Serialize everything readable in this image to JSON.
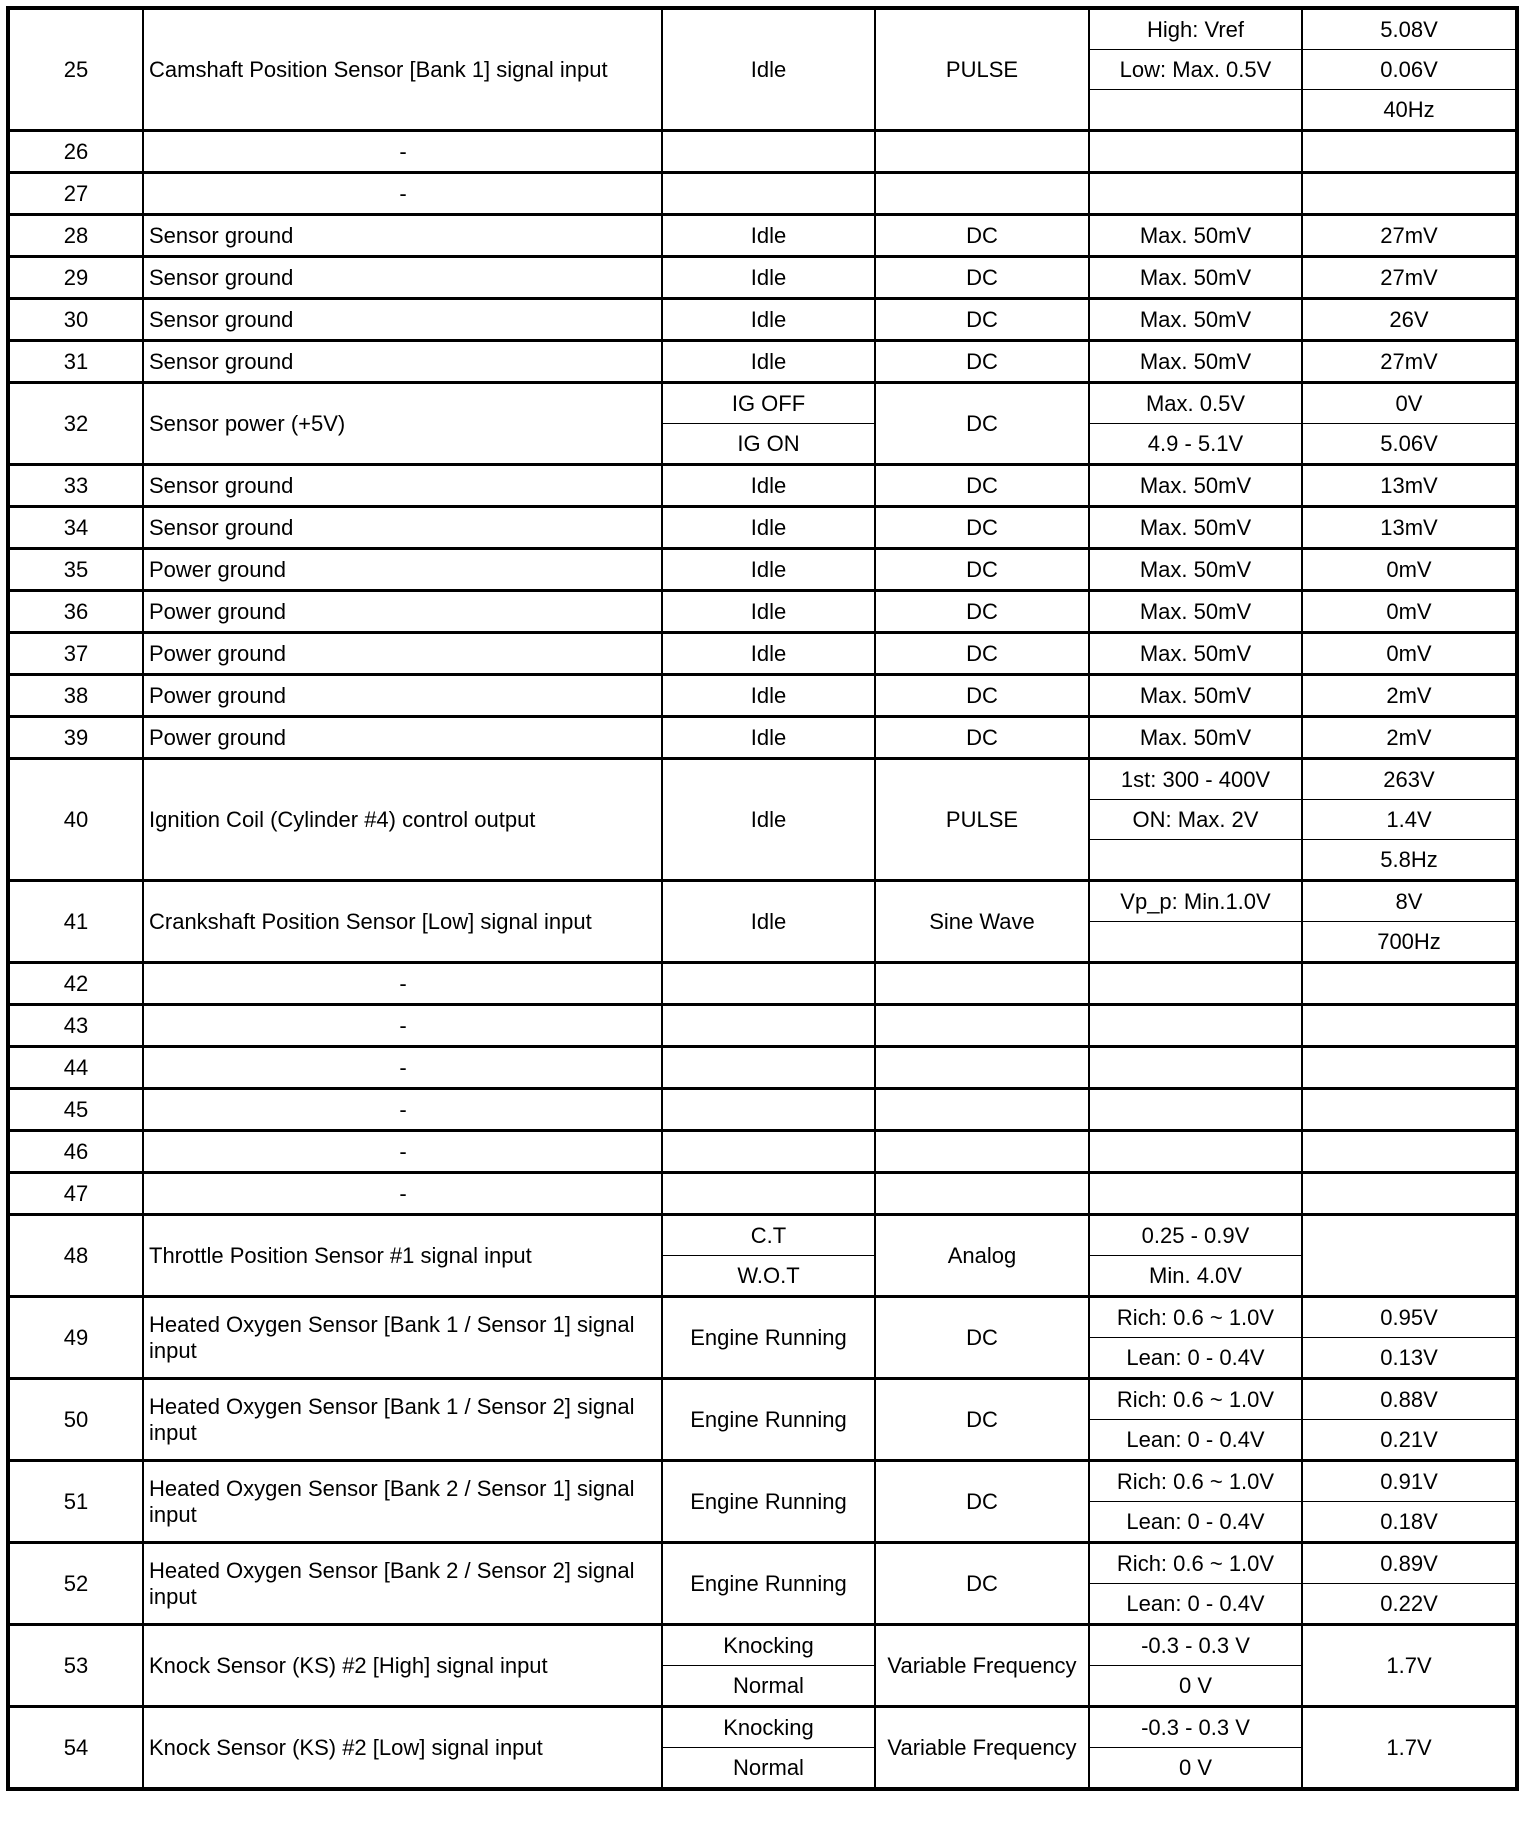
{
  "table": {
    "rows": [
      {
        "pin": "25",
        "description": "Camshaft Position Sensor [Bank 1] signal input",
        "conditions": [
          "Idle"
        ],
        "type": "PULSE",
        "specs": [
          "High: Vref",
          "Low: Max. 0.5V",
          ""
        ],
        "values": [
          "5.08V",
          "0.06V",
          "40Hz"
        ]
      },
      {
        "pin": "26",
        "description": "-",
        "conditions": [
          ""
        ],
        "type": "",
        "specs": [
          ""
        ],
        "values": [
          ""
        ]
      },
      {
        "pin": "27",
        "description": "-",
        "conditions": [
          ""
        ],
        "type": "",
        "specs": [
          ""
        ],
        "values": [
          ""
        ]
      },
      {
        "pin": "28",
        "description": "Sensor ground",
        "conditions": [
          "Idle"
        ],
        "type": "DC",
        "specs": [
          "Max. 50mV"
        ],
        "values": [
          "27mV"
        ]
      },
      {
        "pin": "29",
        "description": "Sensor ground",
        "conditions": [
          "Idle"
        ],
        "type": "DC",
        "specs": [
          "Max. 50mV"
        ],
        "values": [
          "27mV"
        ]
      },
      {
        "pin": "30",
        "description": "Sensor ground",
        "conditions": [
          "Idle"
        ],
        "type": "DC",
        "specs": [
          "Max. 50mV"
        ],
        "values": [
          "26V"
        ]
      },
      {
        "pin": "31",
        "description": "Sensor ground",
        "conditions": [
          "Idle"
        ],
        "type": "DC",
        "specs": [
          "Max. 50mV"
        ],
        "values": [
          "27mV"
        ]
      },
      {
        "pin": "32",
        "description": "Sensor power (+5V)",
        "conditions": [
          "IG OFF",
          "IG ON"
        ],
        "type": "DC",
        "specs": [
          "Max. 0.5V",
          "4.9 - 5.1V"
        ],
        "values": [
          "0V",
          "5.06V"
        ]
      },
      {
        "pin": "33",
        "description": "Sensor ground",
        "conditions": [
          "Idle"
        ],
        "type": "DC",
        "specs": [
          "Max. 50mV"
        ],
        "values": [
          "13mV"
        ]
      },
      {
        "pin": "34",
        "description": "Sensor ground",
        "conditions": [
          "Idle"
        ],
        "type": "DC",
        "specs": [
          "Max. 50mV"
        ],
        "values": [
          "13mV"
        ]
      },
      {
        "pin": "35",
        "description": "Power ground",
        "conditions": [
          "Idle"
        ],
        "type": "DC",
        "specs": [
          "Max. 50mV"
        ],
        "values": [
          "0mV"
        ]
      },
      {
        "pin": "36",
        "description": "Power ground",
        "conditions": [
          "Idle"
        ],
        "type": "DC",
        "specs": [
          "Max. 50mV"
        ],
        "values": [
          "0mV"
        ]
      },
      {
        "pin": "37",
        "description": "Power ground",
        "conditions": [
          "Idle"
        ],
        "type": "DC",
        "specs": [
          "Max. 50mV"
        ],
        "values": [
          "0mV"
        ]
      },
      {
        "pin": "38",
        "description": "Power ground",
        "conditions": [
          "Idle"
        ],
        "type": "DC",
        "specs": [
          "Max. 50mV"
        ],
        "values": [
          "2mV"
        ]
      },
      {
        "pin": "39",
        "description": "Power ground",
        "conditions": [
          "Idle"
        ],
        "type": "DC",
        "specs": [
          "Max. 50mV"
        ],
        "values": [
          "2mV"
        ]
      },
      {
        "pin": "40",
        "description": "Ignition Coil (Cylinder #4) control output",
        "conditions": [
          "Idle"
        ],
        "type": "PULSE",
        "specs": [
          "1st: 300 - 400V",
          "ON: Max. 2V",
          ""
        ],
        "values": [
          "263V",
          "1.4V",
          "5.8Hz"
        ]
      },
      {
        "pin": "41",
        "description": "Crankshaft Position Sensor [Low] signal input",
        "conditions": [
          "Idle"
        ],
        "type": "Sine Wave",
        "specs": [
          "Vp_p: Min.1.0V",
          ""
        ],
        "values": [
          "8V",
          "700Hz"
        ]
      },
      {
        "pin": "42",
        "description": "-",
        "conditions": [
          ""
        ],
        "type": "",
        "specs": [
          ""
        ],
        "values": [
          ""
        ]
      },
      {
        "pin": "43",
        "description": "-",
        "conditions": [
          ""
        ],
        "type": "",
        "specs": [
          ""
        ],
        "values": [
          ""
        ]
      },
      {
        "pin": "44",
        "description": "-",
        "conditions": [
          ""
        ],
        "type": "",
        "specs": [
          ""
        ],
        "values": [
          ""
        ]
      },
      {
        "pin": "45",
        "description": "-",
        "conditions": [
          ""
        ],
        "type": "",
        "specs": [
          ""
        ],
        "values": [
          ""
        ]
      },
      {
        "pin": "46",
        "description": "-",
        "conditions": [
          ""
        ],
        "type": "",
        "specs": [
          ""
        ],
        "values": [
          ""
        ]
      },
      {
        "pin": "47",
        "description": "-",
        "conditions": [
          ""
        ],
        "type": "",
        "specs": [
          ""
        ],
        "values": [
          ""
        ]
      },
      {
        "pin": "48",
        "description": "Throttle Position Sensor #1 signal input",
        "conditions": [
          "C.T",
          "W.O.T"
        ],
        "type": "Analog",
        "specs": [
          "0.25 - 0.9V",
          "Min. 4.0V"
        ],
        "values": [
          ""
        ]
      },
      {
        "pin": "49",
        "description": "Heated Oxygen Sensor [Bank 1 / Sensor 1] signal input",
        "conditions": [
          "Engine Running"
        ],
        "type": "DC",
        "specs": [
          "Rich: 0.6 ~ 1.0V",
          "Lean: 0 - 0.4V"
        ],
        "values": [
          "0.95V",
          "0.13V"
        ]
      },
      {
        "pin": "50",
        "description": "Heated Oxygen Sensor [Bank 1 / Sensor 2] signal input",
        "conditions": [
          "Engine Running"
        ],
        "type": "DC",
        "specs": [
          "Rich: 0.6 ~ 1.0V",
          "Lean: 0 - 0.4V"
        ],
        "values": [
          "0.88V",
          "0.21V"
        ]
      },
      {
        "pin": "51",
        "description": "Heated Oxygen Sensor [Bank 2 / Sensor 1] signal input",
        "conditions": [
          "Engine Running"
        ],
        "type": "DC",
        "specs": [
          "Rich: 0.6 ~ 1.0V",
          "Lean: 0 - 0.4V"
        ],
        "values": [
          "0.91V",
          "0.18V"
        ]
      },
      {
        "pin": "52",
        "description": "Heated Oxygen Sensor [Bank 2 / Sensor 2] signal input",
        "conditions": [
          "Engine Running"
        ],
        "type": "DC",
        "specs": [
          "Rich: 0.6 ~ 1.0V",
          "Lean: 0 - 0.4V"
        ],
        "values": [
          "0.89V",
          "0.22V"
        ]
      },
      {
        "pin": "53",
        "description": "Knock Sensor (KS) #2 [High] signal input",
        "conditions": [
          "Knocking",
          "Normal"
        ],
        "type": "Variable Frequency",
        "specs": [
          "-0.3 - 0.3 V",
          "0 V"
        ],
        "values": [
          "1.7V"
        ]
      },
      {
        "pin": "54",
        "description": "Knock Sensor (KS) #2 [Low] signal input",
        "conditions": [
          "Knocking",
          "Normal"
        ],
        "type": "Variable Frequency",
        "specs": [
          "-0.3 - 0.3 V",
          "0 V"
        ],
        "values": [
          "1.7V"
        ]
      }
    ]
  }
}
